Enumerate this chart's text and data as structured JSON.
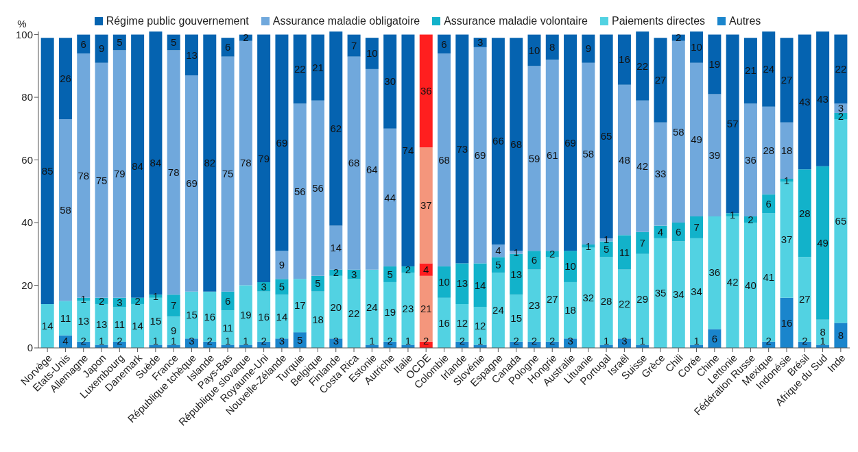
{
  "chart_data": {
    "type": "bar",
    "stacked": true,
    "ylabel": "%",
    "ylim": [
      0,
      101
    ],
    "yticks": [
      0,
      20,
      40,
      60,
      80,
      100
    ],
    "grid": false,
    "legend": "top",
    "data_labels": true,
    "categories": [
      "Norvège",
      "Etats-Unis",
      "Allemagne",
      "Japon",
      "Luxembourg",
      "Danemark",
      "Suède",
      "France",
      "République tchèque",
      "Islande",
      "Pays-Bas",
      "République slovaque",
      "Royaume-Uni",
      "Nouvelle-Zélande",
      "Turquie",
      "Belgique",
      "Finlande",
      "Costa Rica",
      "Estonie",
      "Autriche",
      "Italie",
      "OCDE",
      "Colombie",
      "Irlande",
      "Slovénie",
      "Espagne",
      "Canada",
      "Pologne",
      "Hongrie",
      "Australie",
      "Lituanie",
      "Portugal",
      "Israël",
      "Suisse",
      "Grèce",
      "Chili",
      "Corée",
      "Chine",
      "Lettonie",
      "Fédération Russe",
      "Mexique",
      "Indonésie",
      "Brésil",
      "Afrique du Sud",
      "Inde"
    ],
    "series": [
      {
        "name": "Autres",
        "color": "#1a85cc",
        "values": [
          null,
          4,
          2,
          1,
          2,
          null,
          1,
          1,
          3,
          2,
          1,
          1,
          2,
          3,
          5,
          null,
          3,
          null,
          1,
          2,
          1,
          2,
          null,
          2,
          1,
          null,
          2,
          2,
          2,
          3,
          null,
          1,
          3,
          1,
          null,
          null,
          1,
          6,
          null,
          null,
          2,
          16,
          2,
          1,
          8
        ],
        "colors": [
          "#1a85cc",
          "#1a85cc",
          "#1a85cc",
          "#1a85cc",
          "#1a85cc",
          "#1a85cc",
          "#1a85cc",
          "#1a85cc",
          "#1a85cc",
          "#1a85cc",
          "#1a85cc",
          "#1a85cc",
          "#1a85cc",
          "#1a85cc",
          "#1a85cc",
          "#1a85cc",
          "#1a85cc",
          "#1a85cc",
          "#1a85cc",
          "#1a85cc",
          "#1a85cc",
          "#ff1f1f",
          "#1a85cc",
          "#1a85cc",
          "#1a85cc",
          "#1a85cc",
          "#1a85cc",
          "#1a85cc",
          "#1a85cc",
          "#1a85cc",
          "#1a85cc",
          "#1a85cc",
          "#1a85cc",
          "#1a85cc",
          "#1a85cc",
          "#1a85cc",
          "#1a85cc",
          "#1a85cc",
          "#1a85cc",
          "#1a85cc",
          "#1a85cc",
          "#1a85cc",
          "#1a85cc",
          "#1a85cc",
          "#1a85cc"
        ]
      },
      {
        "name": "Paiements directes",
        "color": "#52d2e2",
        "values": [
          14,
          11,
          13,
          13,
          11,
          14,
          15,
          9,
          15,
          16,
          11,
          19,
          16,
          14,
          17,
          18,
          20,
          22,
          24,
          19,
          23,
          21,
          16,
          12,
          12,
          24,
          15,
          23,
          27,
          18,
          32,
          28,
          22,
          29,
          35,
          34,
          34,
          36,
          42,
          40,
          41,
          37,
          27,
          8,
          65
        ],
        "colors": [
          "#52d2e2",
          "#52d2e2",
          "#52d2e2",
          "#52d2e2",
          "#52d2e2",
          "#52d2e2",
          "#52d2e2",
          "#52d2e2",
          "#52d2e2",
          "#52d2e2",
          "#52d2e2",
          "#52d2e2",
          "#52d2e2",
          "#52d2e2",
          "#52d2e2",
          "#52d2e2",
          "#52d2e2",
          "#52d2e2",
          "#52d2e2",
          "#52d2e2",
          "#52d2e2",
          "#f4967c",
          "#52d2e2",
          "#52d2e2",
          "#52d2e2",
          "#52d2e2",
          "#52d2e2",
          "#52d2e2",
          "#52d2e2",
          "#52d2e2",
          "#52d2e2",
          "#52d2e2",
          "#52d2e2",
          "#52d2e2",
          "#52d2e2",
          "#52d2e2",
          "#52d2e2",
          "#52d2e2",
          "#52d2e2",
          "#52d2e2",
          "#52d2e2",
          "#52d2e2",
          "#52d2e2",
          "#52d2e2",
          "#52d2e2"
        ]
      },
      {
        "name": "Assurance maladie volontaire",
        "color": "#12b2ca",
        "values": [
          null,
          null,
          1,
          2,
          3,
          2,
          1,
          7,
          null,
          null,
          6,
          null,
          3,
          5,
          null,
          5,
          2,
          3,
          null,
          5,
          2,
          4,
          10,
          13,
          14,
          5,
          13,
          6,
          2,
          10,
          1,
          5,
          11,
          7,
          4,
          6,
          7,
          null,
          1,
          2,
          6,
          1,
          28,
          49,
          2
        ],
        "colors": [
          "#12b2ca",
          "#12b2ca",
          "#12b2ca",
          "#12b2ca",
          "#12b2ca",
          "#12b2ca",
          "#12b2ca",
          "#12b2ca",
          "#12b2ca",
          "#12b2ca",
          "#12b2ca",
          "#12b2ca",
          "#12b2ca",
          "#12b2ca",
          "#12b2ca",
          "#12b2ca",
          "#12b2ca",
          "#12b2ca",
          "#12b2ca",
          "#12b2ca",
          "#12b2ca",
          "#ff1f1f",
          "#12b2ca",
          "#12b2ca",
          "#12b2ca",
          "#12b2ca",
          "#12b2ca",
          "#12b2ca",
          "#12b2ca",
          "#12b2ca",
          "#12b2ca",
          "#12b2ca",
          "#12b2ca",
          "#12b2ca",
          "#12b2ca",
          "#12b2ca",
          "#12b2ca",
          "#12b2ca",
          "#12b2ca",
          "#12b2ca",
          "#12b2ca",
          "#12b2ca",
          "#12b2ca",
          "#12b2ca",
          "#12b2ca"
        ]
      },
      {
        "name": "Assurance maladie obligatoire",
        "color": "#70a8dc",
        "values": [
          null,
          58,
          78,
          75,
          79,
          null,
          null,
          78,
          69,
          null,
          75,
          78,
          null,
          9,
          56,
          56,
          14,
          68,
          64,
          44,
          null,
          37,
          68,
          null,
          69,
          4,
          1,
          59,
          61,
          null,
          58,
          1,
          48,
          42,
          33,
          58,
          49,
          39,
          null,
          36,
          28,
          18,
          null,
          null,
          3
        ],
        "colors": [
          "#70a8dc",
          "#70a8dc",
          "#70a8dc",
          "#70a8dc",
          "#70a8dc",
          "#70a8dc",
          "#70a8dc",
          "#70a8dc",
          "#70a8dc",
          "#70a8dc",
          "#70a8dc",
          "#70a8dc",
          "#70a8dc",
          "#70a8dc",
          "#70a8dc",
          "#70a8dc",
          "#70a8dc",
          "#70a8dc",
          "#70a8dc",
          "#70a8dc",
          "#70a8dc",
          "#f4967c",
          "#70a8dc",
          "#70a8dc",
          "#70a8dc",
          "#70a8dc",
          "#70a8dc",
          "#70a8dc",
          "#70a8dc",
          "#70a8dc",
          "#70a8dc",
          "#70a8dc",
          "#70a8dc",
          "#70a8dc",
          "#70a8dc",
          "#70a8dc",
          "#70a8dc",
          "#70a8dc",
          "#70a8dc",
          "#70a8dc",
          "#70a8dc",
          "#70a8dc",
          "#70a8dc",
          "#70a8dc",
          "#70a8dc"
        ]
      },
      {
        "name": "Régime public gouvernement",
        "color": "#0563b0",
        "values": [
          85,
          26,
          6,
          9,
          5,
          84,
          84,
          5,
          13,
          82,
          6,
          2,
          79,
          69,
          22,
          21,
          62,
          7,
          10,
          30,
          74,
          36,
          6,
          73,
          3,
          66,
          68,
          10,
          8,
          69,
          9,
          65,
          16,
          22,
          27,
          2,
          10,
          19,
          57,
          21,
          24,
          27,
          43,
          43,
          22
        ],
        "colors": [
          "#0563b0",
          "#0563b0",
          "#0563b0",
          "#0563b0",
          "#0563b0",
          "#0563b0",
          "#0563b0",
          "#0563b0",
          "#0563b0",
          "#0563b0",
          "#0563b0",
          "#0563b0",
          "#0563b0",
          "#0563b0",
          "#0563b0",
          "#0563b0",
          "#0563b0",
          "#0563b0",
          "#0563b0",
          "#0563b0",
          "#0563b0",
          "#ff1f1f",
          "#0563b0",
          "#0563b0",
          "#0563b0",
          "#0563b0",
          "#0563b0",
          "#0563b0",
          "#0563b0",
          "#0563b0",
          "#0563b0",
          "#0563b0",
          "#0563b0",
          "#0563b0",
          "#0563b0",
          "#0563b0",
          "#0563b0",
          "#0563b0",
          "#0563b0",
          "#0563b0",
          "#0563b0",
          "#0563b0",
          "#0563b0",
          "#0563b0",
          "#0563b0"
        ]
      }
    ]
  }
}
